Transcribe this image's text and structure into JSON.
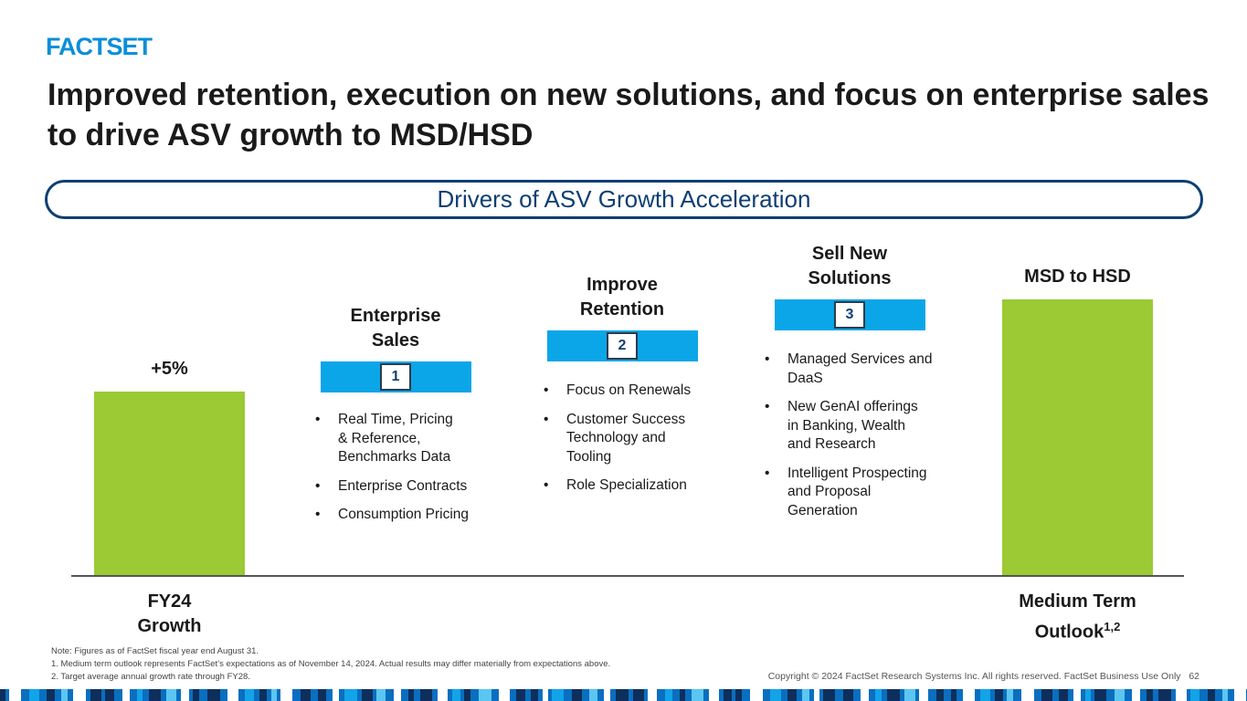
{
  "logo_text": "FACTSET",
  "title": "Improved retention, execution on new solutions, and focus on enterprise sales to drive ASV growth to MSD/HSD",
  "banner": "Drivers of ASV Growth Acceleration",
  "colors": {
    "bar": "#9bca34",
    "driver": "#0aa6e8",
    "navy": "#0e3f74",
    "logo": "#0a8fd8"
  },
  "chart_data": {
    "type": "bar",
    "categories": [
      "FY24 Growth",
      "Medium Term Outlook"
    ],
    "bars": [
      {
        "xlabel": "FY24\nGrowth",
        "label": "+5%",
        "value": 5
      },
      {
        "xlabel": "Medium Term\nOutlook",
        "superscript": "1,2",
        "label": "MSD to HSD",
        "value": 7.5
      }
    ],
    "ylim": [
      0,
      7.5
    ],
    "grid": false,
    "drivers": [
      {
        "number": "1",
        "heading": "Enterprise\nSales",
        "items": [
          "Real Time, Pricing\n& Reference,\nBenchmarks Data",
          "Enterprise Contracts",
          "Consumption Pricing"
        ]
      },
      {
        "number": "2",
        "heading": "Improve\nRetention",
        "items": [
          "Focus on Renewals",
          "Customer Success\nTechnology and\nTooling",
          "Role Specialization"
        ]
      },
      {
        "number": "3",
        "heading": "Sell New\nSolutions",
        "items": [
          "Managed Services and\nDaaS",
          "New GenAI offerings\nin Banking, Wealth\nand Research",
          "Intelligent Prospecting\nand Proposal\nGeneration"
        ]
      }
    ]
  },
  "notes": [
    "Note: Figures as of FactSet fiscal year end August 31.",
    "1. Medium term outlook represents FactSet’s expectations as of November 14, 2024. Actual results may differ materially from expectations above.",
    "2. Target average annual growth rate through FY28."
  ],
  "copyright": "Copyright © 2024 FactSet Research Systems Inc. All rights reserved. FactSet Business Use Only",
  "page_number": "62"
}
